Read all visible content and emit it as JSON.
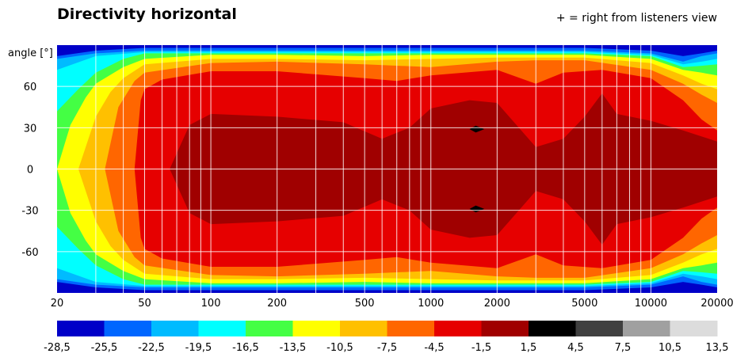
{
  "chart_data": {
    "type": "heatmap",
    "title": "Directivity horizontal",
    "note": "+ = right from listeners view",
    "ylabel": "angle [°]",
    "xlabel": "",
    "x_scale": "log",
    "xlim": [
      20,
      20000
    ],
    "ylim": [
      -90,
      90
    ],
    "x_ticks": [
      20,
      50,
      100,
      200,
      500,
      1000,
      2000,
      5000,
      10000,
      20000
    ],
    "y_ticks": [
      60,
      30,
      0,
      -30,
      -60
    ],
    "grid": true,
    "colorbar": {
      "placement": "bottom",
      "boundaries": [
        "-28,5",
        "-25,5",
        "-22,5",
        "-19,5",
        "-16,5",
        "-13,5",
        "-10,5",
        "-7,5",
        "-4,5",
        "-1,5",
        "1,5",
        "4,5",
        "7,5",
        "10,5",
        "13,5"
      ],
      "colors": [
        "#0000c8",
        "#0066ff",
        "#00bbff",
        "#00ffff",
        "#44ff44",
        "#ffff00",
        "#ffc000",
        "#ff6600",
        "#e60000",
        "#a00000",
        "#000000",
        "#404040",
        "#a0a0a0",
        "#dcdcdc"
      ]
    },
    "contours": [
      {
        "level": "-25,5",
        "color": "#0066ff",
        "freq": [
          20,
          30,
          50,
          100,
          200,
          500,
          1000,
          2000,
          5000,
          10000,
          14000,
          17000,
          20000
        ],
        "half_width_deg": [
          82,
          86,
          88,
          88,
          88,
          88,
          88,
          88,
          88,
          86,
          82,
          84,
          86
        ]
      },
      {
        "level": "-22,5",
        "color": "#00bbff",
        "freq": [
          20,
          30,
          50,
          100,
          200,
          500,
          1000,
          2000,
          5000,
          10000,
          14000,
          17000,
          20000
        ],
        "half_width_deg": [
          80,
          84,
          86,
          86,
          86,
          86,
          86,
          86,
          86,
          84,
          78,
          82,
          84
        ]
      },
      {
        "level": "-19,5",
        "color": "#00ffff",
        "freq": [
          20,
          30,
          50,
          100,
          200,
          500,
          1000,
          2000,
          5000,
          10000,
          14000,
          17000,
          20000
        ],
        "half_width_deg": [
          72,
          82,
          85,
          85,
          85,
          85,
          85,
          85,
          85,
          83,
          76,
          78,
          80
        ]
      },
      {
        "level": "-16,5",
        "color": "#44ff44",
        "freq": [
          20,
          25,
          30,
          40,
          50,
          100,
          200,
          500,
          1000,
          2000,
          5000,
          10000,
          14000,
          17000,
          20000
        ],
        "half_width_deg": [
          42,
          58,
          70,
          80,
          84,
          84,
          84,
          84,
          84,
          84,
          84,
          82,
          74,
          75,
          76
        ]
      },
      {
        "level": "-13,5",
        "color": "#ffff00",
        "freq": [
          20,
          23,
          27,
          30,
          40,
          50,
          100,
          200,
          500,
          1000,
          2000,
          5000,
          10000,
          14000,
          17000,
          20000
        ],
        "half_width_deg": [
          0,
          32,
          52,
          62,
          74,
          80,
          83,
          83,
          82,
          83,
          83,
          83,
          80,
          72,
          70,
          68
        ]
      },
      {
        "level": "-10,5",
        "color": "#ffc000",
        "freq": [
          25,
          30,
          35,
          40,
          50,
          100,
          200,
          500,
          1000,
          2000,
          5000,
          10000,
          14000,
          17000,
          20000
        ],
        "half_width_deg": [
          0,
          38,
          56,
          66,
          76,
          80,
          80,
          79,
          80,
          81,
          81,
          77,
          68,
          62,
          58
        ]
      },
      {
        "level": "-7,5",
        "color": "#ff6600",
        "freq": [
          33,
          38,
          45,
          50,
          100,
          200,
          500,
          1000,
          2000,
          3000,
          5000,
          10000,
          14000,
          17000,
          20000
        ],
        "half_width_deg": [
          0,
          45,
          64,
          70,
          77,
          78,
          76,
          74,
          78,
          79,
          79,
          72,
          62,
          54,
          48
        ]
      },
      {
        "level": "-4,5",
        "color": "#e60000",
        "freq": [
          45,
          48,
          50,
          60,
          100,
          200,
          500,
          700,
          1000,
          2000,
          3000,
          4000,
          6000,
          10000,
          14000,
          17000,
          20000
        ],
        "half_width_deg": [
          0,
          50,
          58,
          65,
          71,
          71,
          66,
          64,
          68,
          72,
          62,
          70,
          72,
          66,
          50,
          36,
          28
        ]
      },
      {
        "level": "-1,5",
        "color": "#a00000",
        "freq": [
          65,
          80,
          100,
          200,
          400,
          600,
          800,
          1000,
          1500,
          2000,
          3000,
          4000,
          5000,
          6000,
          7000,
          10000,
          14000,
          20000
        ],
        "half_width_deg": [
          0,
          32,
          40,
          38,
          34,
          22,
          30,
          44,
          50,
          48,
          16,
          22,
          38,
          55,
          40,
          35,
          28,
          20
        ]
      },
      {
        "level": "1,5",
        "color": "#000000",
        "freq": [
          1500,
          1600,
          1750
        ],
        "center_deg": 29,
        "half_width_deg": [
          0,
          2.5,
          0
        ],
        "mirrored_at_deg": -29
      }
    ]
  }
}
